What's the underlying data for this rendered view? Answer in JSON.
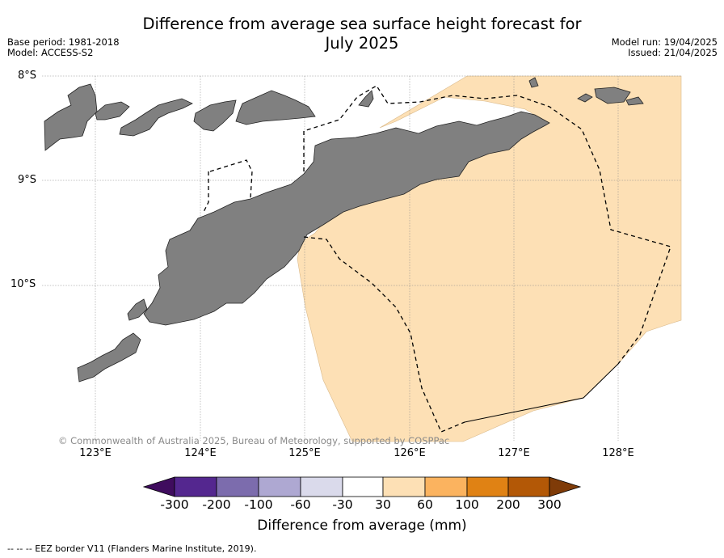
{
  "title_line1": "Difference from average sea surface height forecast for",
  "title_line2": "July 2025",
  "base_period": "Base period: 1981-2018",
  "model": "Model: ACCESS-S2",
  "model_run": "Model run: 19/04/2025",
  "issued": "Issued: 21/04/2025",
  "copyright": "© Commonwealth of Australia 2025, Bureau of Meteorology, supported by COSPPac",
  "lat_labels": [
    "8°S",
    "9°S",
    "10°S"
  ],
  "lon_labels": [
    "123°E",
    "124°E",
    "125°E",
    "126°E",
    "127°E",
    "128°E"
  ],
  "colorbar": {
    "label": "Difference from average (mm)",
    "ticks": [
      "-300",
      "-200",
      "-100",
      "-60",
      "-30",
      "30",
      "60",
      "100",
      "200",
      "300"
    ],
    "colors": [
      "#3f0c5e",
      "#54278f",
      "#7c6cad",
      "#aea8d2",
      "#dadaeb",
      "#ffffff",
      "#fde0b5",
      "#fbb35f",
      "#e08214",
      "#b35806",
      "#7f3b08"
    ]
  },
  "land_color": "#808080",
  "anomaly_fill_color": "#fde0b5",
  "footer": "--  --  -- EEZ border V11 (Flanders Marine Institute, 2019)."
}
